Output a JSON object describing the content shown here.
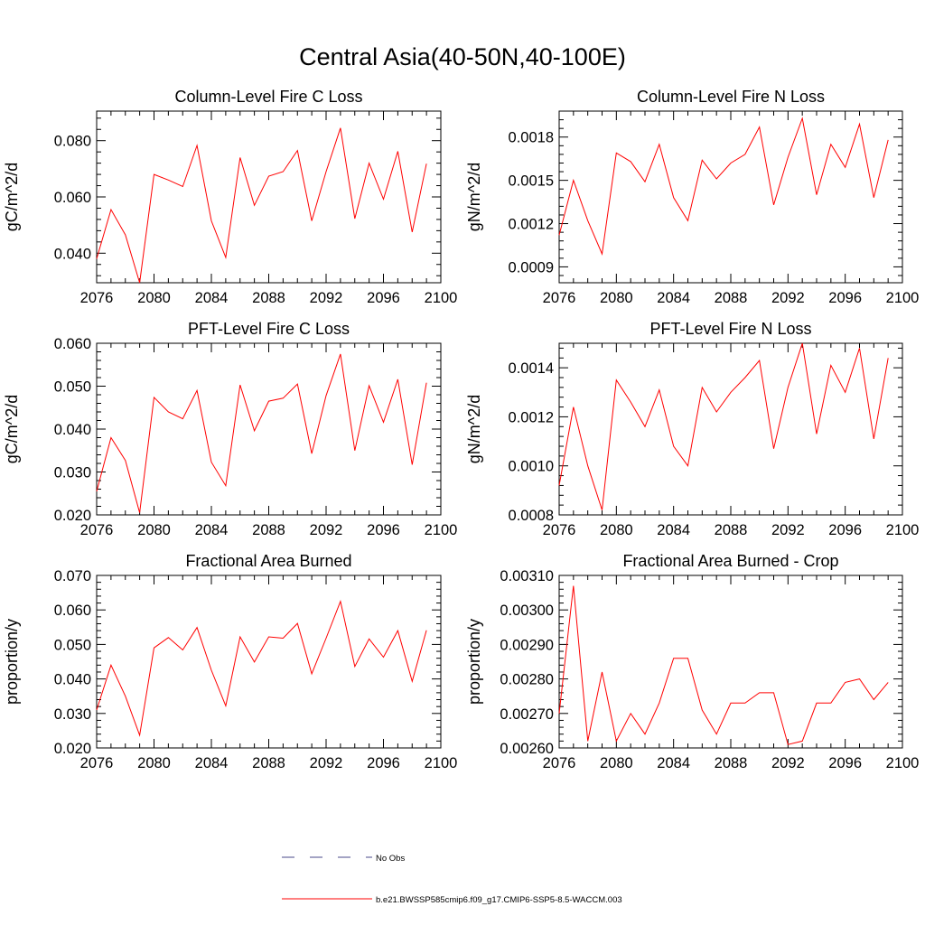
{
  "title": "Central Asia(40-50N,40-100E)",
  "colors": {
    "model": "#ff0000",
    "obs": "#4a4a8a",
    "axis": "#000000"
  },
  "legend": {
    "items": [
      {
        "label": "No Obs",
        "style": "dashed",
        "color": "#4a4a8a"
      },
      {
        "label": "b.e21.BWSSP585cmip6.f09_g17.CMIP6-SSP5-8.5-WACCM.003",
        "style": "solid",
        "color": "#ff0000"
      }
    ]
  },
  "chart_data": [
    {
      "type": "line",
      "title": "Column-Level Fire C Loss",
      "ylabel": "gC/m^2/d",
      "xlim": [
        2076,
        2100
      ],
      "ylim": [
        0.0295,
        0.0905
      ],
      "xticks": [
        "2076",
        "2080",
        "2084",
        "2088",
        "2092",
        "2096",
        "2100"
      ],
      "yticks": [
        "0.040",
        "0.060",
        "0.080"
      ],
      "x": [
        2076,
        2077,
        2078,
        2079,
        2080,
        2081,
        2082,
        2083,
        2084,
        2085,
        2086,
        2087,
        2088,
        2089,
        2090,
        2091,
        2092,
        2093,
        2094,
        2095,
        2096,
        2097,
        2098,
        2099
      ],
      "values": [
        0.038,
        0.0555,
        0.0465,
        0.0295,
        0.068,
        0.066,
        0.0637,
        0.0783,
        0.0515,
        0.0385,
        0.074,
        0.057,
        0.0674,
        0.069,
        0.0765,
        0.0515,
        0.069,
        0.0845,
        0.0523,
        0.072,
        0.0592,
        0.0762,
        0.0475,
        0.0718
      ]
    },
    {
      "type": "line",
      "title": "Column-Level Fire N Loss",
      "ylabel": "gN/m^2/d",
      "xlim": [
        2076,
        2100
      ],
      "ylim": [
        0.00079,
        0.00198
      ],
      "xticks": [
        "2076",
        "2080",
        "2084",
        "2088",
        "2092",
        "2096",
        "2100"
      ],
      "yticks": [
        "0.0009",
        "0.0012",
        "0.0015",
        "0.0018"
      ],
      "x": [
        2076,
        2077,
        2078,
        2079,
        2080,
        2081,
        2082,
        2083,
        2084,
        2085,
        2086,
        2087,
        2088,
        2089,
        2090,
        2091,
        2092,
        2093,
        2094,
        2095,
        2096,
        2097,
        2098,
        2099
      ],
      "values": [
        0.00112,
        0.0015,
        0.00122,
        0.00099,
        0.00169,
        0.00163,
        0.00149,
        0.00175,
        0.00138,
        0.00122,
        0.00164,
        0.00151,
        0.00162,
        0.00168,
        0.00187,
        0.00133,
        0.00166,
        0.00193,
        0.0014,
        0.00175,
        0.00159,
        0.00189,
        0.00138,
        0.00178
      ]
    },
    {
      "type": "line",
      "title": "PFT-Level Fire C Loss",
      "ylabel": "gC/m^2/d",
      "xlim": [
        2076,
        2100
      ],
      "ylim": [
        0.02,
        0.06
      ],
      "xticks": [
        "2076",
        "2080",
        "2084",
        "2088",
        "2092",
        "2096",
        "2100"
      ],
      "yticks": [
        "0.020",
        "0.030",
        "0.040",
        "0.050",
        "0.060"
      ],
      "x": [
        2076,
        2077,
        2078,
        2079,
        2080,
        2081,
        2082,
        2083,
        2084,
        2085,
        2086,
        2087,
        2088,
        2089,
        2090,
        2091,
        2092,
        2093,
        2094,
        2095,
        2096,
        2097,
        2098,
        2099
      ],
      "values": [
        0.0255,
        0.038,
        0.0327,
        0.0205,
        0.0474,
        0.044,
        0.0424,
        0.049,
        0.0323,
        0.0268,
        0.0503,
        0.0396,
        0.0465,
        0.0472,
        0.0505,
        0.0343,
        0.0478,
        0.0575,
        0.035,
        0.0501,
        0.0416,
        0.0516,
        0.0317,
        0.0508
      ]
    },
    {
      "type": "line",
      "title": "PFT-Level Fire N Loss",
      "ylabel": "gN/m^2/d",
      "xlim": [
        2076,
        2100
      ],
      "ylim": [
        0.0008,
        0.0015
      ],
      "xticks": [
        "2076",
        "2080",
        "2084",
        "2088",
        "2092",
        "2096",
        "2100"
      ],
      "yticks": [
        "0.0008",
        "0.0010",
        "0.0012",
        "0.0014"
      ],
      "x": [
        2076,
        2077,
        2078,
        2079,
        2080,
        2081,
        2082,
        2083,
        2084,
        2085,
        2086,
        2087,
        2088,
        2089,
        2090,
        2091,
        2092,
        2093,
        2094,
        2095,
        2096,
        2097,
        2098,
        2099
      ],
      "values": [
        0.00092,
        0.00124,
        0.001,
        0.00082,
        0.00135,
        0.00126,
        0.00116,
        0.00131,
        0.00108,
        0.001,
        0.00132,
        0.00122,
        0.0013,
        0.00136,
        0.00143,
        0.00107,
        0.00132,
        0.0015,
        0.00113,
        0.00141,
        0.0013,
        0.00148,
        0.00111,
        0.00144
      ]
    },
    {
      "type": "line",
      "title": "Fractional Area Burned",
      "ylabel": "proportion/y",
      "xlim": [
        2076,
        2100
      ],
      "ylim": [
        0.02,
        0.07
      ],
      "xticks": [
        "2076",
        "2080",
        "2084",
        "2088",
        "2092",
        "2096",
        "2100"
      ],
      "yticks": [
        "0.020",
        "0.030",
        "0.040",
        "0.050",
        "0.060",
        "0.070"
      ],
      "x": [
        2076,
        2077,
        2078,
        2079,
        2080,
        2081,
        2082,
        2083,
        2084,
        2085,
        2086,
        2087,
        2088,
        2089,
        2090,
        2091,
        2092,
        2093,
        2094,
        2095,
        2096,
        2097,
        2098,
        2099
      ],
      "values": [
        0.031,
        0.044,
        0.035,
        0.0237,
        0.049,
        0.052,
        0.0484,
        0.0549,
        0.0425,
        0.0322,
        0.0522,
        0.0449,
        0.0522,
        0.0518,
        0.0561,
        0.0415,
        0.0518,
        0.0625,
        0.0436,
        0.0516,
        0.0463,
        0.054,
        0.0393,
        0.0541
      ]
    },
    {
      "type": "line",
      "title": "Fractional Area Burned - Crop",
      "ylabel": "proportion/y",
      "xlim": [
        2076,
        2100
      ],
      "ylim": [
        0.0026,
        0.0031
      ],
      "xticks": [
        "2076",
        "2080",
        "2084",
        "2088",
        "2092",
        "2096",
        "2100"
      ],
      "yticks": [
        "0.00260",
        "0.00270",
        "0.00280",
        "0.00290",
        "0.00300",
        "0.00310"
      ],
      "x": [
        2076,
        2077,
        2078,
        2079,
        2080,
        2081,
        2082,
        2083,
        2084,
        2085,
        2086,
        2087,
        2088,
        2089,
        2090,
        2091,
        2092,
        2093,
        2094,
        2095,
        2096,
        2097,
        2098,
        2099
      ],
      "values": [
        0.0027,
        0.00307,
        0.00262,
        0.00282,
        0.00262,
        0.0027,
        0.00264,
        0.00273,
        0.00286,
        0.00286,
        0.00271,
        0.00264,
        0.00273,
        0.00273,
        0.00276,
        0.00276,
        0.00261,
        0.00262,
        0.00273,
        0.00273,
        0.00279,
        0.0028,
        0.00274,
        0.00279
      ]
    }
  ]
}
